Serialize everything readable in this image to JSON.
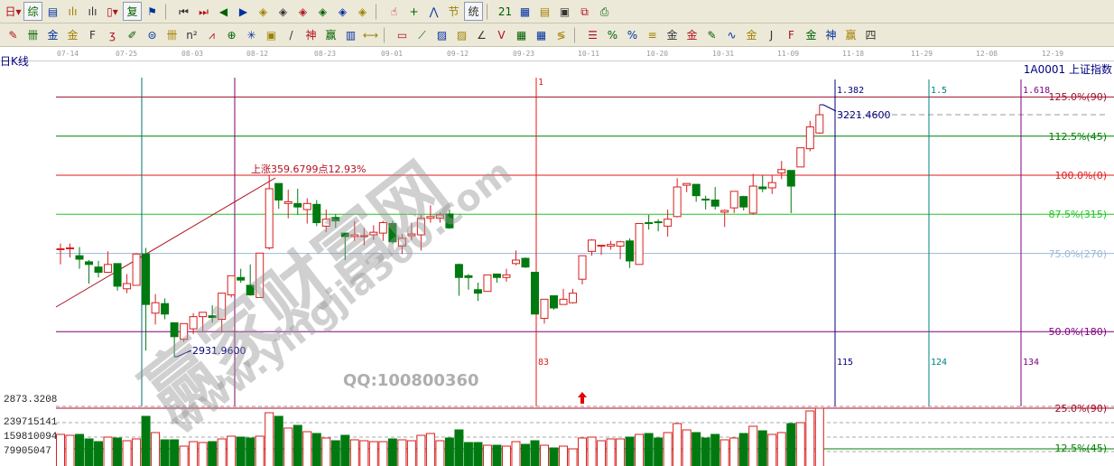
{
  "toolbar_row1": [
    {
      "icon": "period-day-dropdown-icon",
      "glyph": "日▾"
    },
    {
      "icon": "overview-icon",
      "glyph": "综"
    },
    {
      "icon": "notes-icon",
      "glyph": "▤"
    },
    {
      "icon": "volume-3-icon",
      "glyph": "ılı"
    },
    {
      "icon": "volume-9-icon",
      "glyph": "ılı"
    },
    {
      "icon": "candle-style-dropdown-icon",
      "glyph": "▯▾"
    },
    {
      "icon": "restore-rights-icon",
      "glyph": "复"
    },
    {
      "icon": "flag-icon",
      "glyph": "⚑"
    },
    {
      "icon": "sep",
      "glyph": ""
    },
    {
      "icon": "first-page-icon",
      "glyph": "⏮"
    },
    {
      "icon": "last-page-icon",
      "glyph": "⏭"
    },
    {
      "icon": "prev-icon",
      "glyph": "◀"
    },
    {
      "icon": "next-icon",
      "glyph": "▶"
    },
    {
      "icon": "move-left-icon",
      "glyph": "◈"
    },
    {
      "icon": "move-right-icon",
      "glyph": "◈"
    },
    {
      "icon": "zoom-out-icon",
      "glyph": "◈"
    },
    {
      "icon": "zoom-in-icon",
      "glyph": "◈"
    },
    {
      "icon": "expand-icon",
      "glyph": "◈"
    },
    {
      "icon": "expand-vertical-icon",
      "glyph": "◈"
    },
    {
      "icon": "sep",
      "glyph": ""
    },
    {
      "icon": "hand-icon",
      "glyph": "☝"
    },
    {
      "icon": "crosshair-icon",
      "glyph": "+"
    },
    {
      "icon": "trade-icon",
      "glyph": "⋀"
    },
    {
      "icon": "section-icon",
      "glyph": "节"
    },
    {
      "icon": "statistics-icon",
      "glyph": "统"
    },
    {
      "icon": "sep",
      "glyph": ""
    },
    {
      "icon": "calendar-icon",
      "glyph": "21"
    },
    {
      "icon": "calculator-icon",
      "glyph": "▦"
    },
    {
      "icon": "report-icon",
      "glyph": "▤"
    },
    {
      "icon": "save-icon",
      "glyph": "▣"
    },
    {
      "icon": "network-icon",
      "glyph": "⧉"
    },
    {
      "icon": "print-icon",
      "glyph": "⎙"
    }
  ],
  "toolbar_row2": [
    {
      "icon": "pen-icon",
      "glyph": "✎"
    },
    {
      "icon": "grid-lines-icon",
      "glyph": "卌"
    },
    {
      "icon": "gold-split-icon",
      "glyph": "金"
    },
    {
      "icon": "gold-split2-icon",
      "glyph": "金"
    },
    {
      "icon": "fib-icon",
      "glyph": "F"
    },
    {
      "icon": "cycle-icon",
      "glyph": "ʒ"
    },
    {
      "icon": "pen-ruler-icon",
      "glyph": "✐"
    },
    {
      "icon": "circle-icon",
      "glyph": "⊜"
    },
    {
      "icon": "parallel-icon",
      "glyph": "卌"
    },
    {
      "icon": "n-squared-icon",
      "glyph": "n²"
    },
    {
      "icon": "arrow-lines-icon",
      "glyph": "⩘"
    },
    {
      "icon": "target-icon",
      "glyph": "⊕"
    },
    {
      "icon": "web-icon",
      "glyph": "✳"
    },
    {
      "icon": "box-icon",
      "glyph": "▣"
    },
    {
      "icon": "slash-icon",
      "glyph": "/"
    },
    {
      "icon": "shen-icon",
      "glyph": "神"
    },
    {
      "icon": "ying-icon",
      "glyph": "赢"
    },
    {
      "icon": "ruler-icon",
      "glyph": "▥"
    },
    {
      "icon": "width-icon",
      "glyph": "⟷"
    },
    {
      "icon": "sep",
      "glyph": ""
    },
    {
      "icon": "rect-icon",
      "glyph": "▭"
    },
    {
      "icon": "fan-icon",
      "glyph": "⟋"
    },
    {
      "icon": "fan-box-icon",
      "glyph": "▨"
    },
    {
      "icon": "fan-box2-icon",
      "glyph": "▨"
    },
    {
      "icon": "angle-icon",
      "glyph": "∠"
    },
    {
      "icon": "v-icon",
      "glyph": "V"
    },
    {
      "icon": "grid-icon",
      "glyph": "▦"
    },
    {
      "icon": "grid2-icon",
      "glyph": "▦"
    },
    {
      "icon": "multi-line-icon",
      "glyph": "≶"
    },
    {
      "icon": "sep",
      "glyph": ""
    },
    {
      "icon": "list-icon",
      "glyph": "☰"
    },
    {
      "icon": "percent-line-icon",
      "glyph": "%"
    },
    {
      "icon": "percent-icon",
      "glyph": "%"
    },
    {
      "icon": "percent-levels-icon",
      "glyph": "≡"
    },
    {
      "icon": "gold-circle-icon",
      "glyph": "金"
    },
    {
      "icon": "gold-levels-icon",
      "glyph": "金"
    },
    {
      "icon": "pen-levels-icon",
      "glyph": "✎"
    },
    {
      "icon": "wave-icon",
      "glyph": "∿"
    },
    {
      "icon": "gold-line-icon",
      "glyph": "金"
    },
    {
      "icon": "j-fan-icon",
      "glyph": "J"
    },
    {
      "icon": "f-fan-icon",
      "glyph": "F"
    },
    {
      "icon": "gold-fan-icon",
      "glyph": "金"
    },
    {
      "icon": "shen-fan-icon",
      "glyph": "神"
    },
    {
      "icon": "ying-fan-icon",
      "glyph": "赢"
    },
    {
      "icon": "four-fan-icon",
      "glyph": "四"
    }
  ],
  "date_axis": [
    "07-14",
    "07-25",
    "08-03",
    "08-12",
    "08-23",
    "09-01",
    "09-12",
    "09-23",
    "10-11",
    "10-20",
    "10-31",
    "11-09",
    "11-18",
    "11-29",
    "12-08",
    "12-19"
  ],
  "chart": {
    "period_label": "日K线",
    "symbol_label": "1A0001  上证指数",
    "bottom_price_label": "2873.3208",
    "rise_annotation": "上涨359.6799点12.93%",
    "low_annotation": "2931.9600",
    "high_annotation": "3221.4600",
    "colors": {
      "up": "#d81e1e",
      "down": "#007a10",
      "axis_text": "#00007f"
    },
    "fib_levels": [
      {
        "pct": 125.0,
        "label": "125.0%(90)",
        "color": "#a0102a"
      },
      {
        "pct": 112.5,
        "label": "112.5%(45)",
        "color": "#008000"
      },
      {
        "pct": 100.0,
        "label": "100.0%(0)",
        "color": "#e01818"
      },
      {
        "pct": 87.5,
        "label": "87.5%(315)",
        "color": "#22c522"
      },
      {
        "pct": 75.0,
        "label": "75.0%(270)",
        "color": "#9ab8d8"
      },
      {
        "pct": 50.0,
        "label": "50.0%(180)",
        "color": "#800080"
      }
    ],
    "time_lines": [
      {
        "top": "",
        "bottom": "",
        "color": "#007070"
      },
      {
        "top": "",
        "bottom": "",
        "color": "#800060"
      },
      {
        "top": "1",
        "bottom": "83",
        "color": "#e01818"
      },
      {
        "top": "1.382",
        "bottom": "115",
        "color": "#00007f"
      },
      {
        "top": "1.5",
        "bottom": "124",
        "color": "#008080"
      },
      {
        "top": "1.618",
        "bottom": "134",
        "color": "#800080"
      }
    ],
    "candles_ohlc": [
      [
        3055,
        3062,
        3038,
        3056
      ],
      [
        3056,
        3062,
        3046,
        3057
      ],
      [
        3048,
        3058,
        3033,
        3044
      ],
      [
        3041,
        3043,
        3016,
        3038
      ],
      [
        3035,
        3042,
        3023,
        3029
      ],
      [
        3029,
        3053,
        3029,
        3038
      ],
      [
        3039,
        3039,
        3008,
        3013
      ],
      [
        3010,
        3027,
        3005,
        3016
      ],
      [
        3014,
        3051,
        3014,
        3050
      ],
      [
        3050,
        3057,
        2939,
        2992
      ],
      [
        2982,
        3004,
        2969,
        2994
      ],
      [
        2993,
        2999,
        2975,
        2981
      ],
      [
        2971,
        2971,
        2932,
        2955
      ],
      [
        2952,
        2970,
        2949,
        2970
      ],
      [
        2964,
        2982,
        2958,
        2978
      ],
      [
        2978,
        2983,
        2961,
        2983
      ],
      [
        2979,
        2991,
        2971,
        2977
      ],
      [
        2975,
        3005,
        2960,
        3005
      ],
      [
        3003,
        3025,
        3000,
        3025
      ],
      [
        3023,
        3033,
        3017,
        3020
      ],
      [
        3014,
        3038,
        3002,
        3003
      ],
      [
        3000,
        3051,
        3000,
        3051
      ],
      [
        3057,
        3140,
        3055,
        3125
      ],
      [
        3131,
        3131,
        3102,
        3112
      ],
      [
        3108,
        3124,
        3091,
        3110
      ],
      [
        3108,
        3125,
        3095,
        3104
      ],
      [
        3101,
        3114,
        3085,
        3108
      ],
      [
        3107,
        3112,
        3082,
        3086
      ],
      [
        3082,
        3101,
        3075,
        3090
      ],
      [
        3092,
        3096,
        3080,
        3088
      ],
      [
        3074,
        3074,
        3043,
        3070
      ],
      [
        3070,
        3088,
        3065,
        3072
      ],
      [
        3070,
        3080,
        3060,
        3071
      ],
      [
        3072,
        3083,
        3066,
        3075
      ],
      [
        3074,
        3088,
        3065,
        3086
      ],
      [
        3085,
        3088,
        3062,
        3064
      ],
      [
        3059,
        3073,
        3050,
        3068
      ],
      [
        3071,
        3086,
        3066,
        3073
      ],
      [
        3072,
        3095,
        3054,
        3091
      ],
      [
        3091,
        3106,
        3086,
        3093
      ],
      [
        3091,
        3098,
        3086,
        3095
      ],
      [
        3096,
        3101,
        3079,
        3080
      ],
      [
        3038,
        3039,
        3002,
        3023
      ],
      [
        3025,
        3027,
        3009,
        3023
      ],
      [
        3009,
        3017,
        2996,
        3005
      ],
      [
        3007,
        3026,
        3007,
        3026
      ],
      [
        3027,
        3027,
        3017,
        3023
      ],
      [
        3023,
        3033,
        3018,
        3026
      ],
      [
        3039,
        3054,
        3037,
        3043
      ],
      [
        3045,
        3046,
        3034,
        3035
      ],
      [
        3029,
        3029,
        2981,
        2981
      ],
      [
        2976,
        2998,
        2970,
        2998
      ],
      [
        3002,
        3002,
        2986,
        2988
      ],
      [
        2992,
        3010,
        2992,
        2998
      ],
      [
        2994,
        3010,
        2993,
        3005
      ],
      [
        3021,
        3048,
        3015,
        3048
      ],
      [
        3053,
        3067,
        3048,
        3066
      ],
      [
        3059,
        3060,
        3049,
        3060
      ],
      [
        3059,
        3065,
        3055,
        3061
      ],
      [
        3059,
        3065,
        3044,
        3064
      ],
      [
        3065,
        3068,
        3034,
        3042
      ],
      [
        3038,
        3085,
        3038,
        3085
      ],
      [
        3086,
        3095,
        3078,
        3085
      ],
      [
        3087,
        3090,
        3076,
        3086
      ],
      [
        3082,
        3101,
        3070,
        3090
      ],
      [
        3093,
        3137,
        3092,
        3127
      ],
      [
        3129,
        3131,
        3121,
        3131
      ],
      [
        3130,
        3130,
        3110,
        3117
      ],
      [
        3113,
        3117,
        3101,
        3112
      ],
      [
        3112,
        3127,
        3101,
        3105
      ],
      [
        3098,
        3101,
        3081,
        3100
      ],
      [
        3103,
        3122,
        3097,
        3122
      ],
      [
        3116,
        3117,
        3100,
        3104
      ],
      [
        3097,
        3142,
        3095,
        3128
      ],
      [
        3127,
        3140,
        3121,
        3125
      ],
      [
        3126,
        3140,
        3119,
        3132
      ],
      [
        3143,
        3157,
        3136,
        3147
      ],
      [
        3146,
        3146,
        3097,
        3128
      ],
      [
        3150,
        3172,
        3150,
        3172
      ],
      [
        3171,
        3203,
        3168,
        3196
      ],
      [
        3189,
        3221.46,
        3188,
        3210
      ]
    ],
    "volume_axis_labels": [
      "239715141",
      "159810094",
      "79905047"
    ],
    "volume_levels": [
      {
        "label": "25.0%(90)",
        "color": "#a0102a"
      },
      {
        "label": "12.5%(45)",
        "color": "#008000"
      }
    ],
    "volumes": [
      175000000,
      170000000,
      175000000,
      150000000,
      135000000,
      160000000,
      155000000,
      140000000,
      150000000,
      275000000,
      185000000,
      145000000,
      145000000,
      110000000,
      135000000,
      130000000,
      135000000,
      150000000,
      165000000,
      160000000,
      155000000,
      165000000,
      295000000,
      275000000,
      210000000,
      225000000,
      190000000,
      180000000,
      155000000,
      140000000,
      170000000,
      145000000,
      140000000,
      135000000,
      135000000,
      150000000,
      145000000,
      140000000,
      170000000,
      180000000,
      140000000,
      155000000,
      200000000,
      130000000,
      130000000,
      115000000,
      115000000,
      110000000,
      135000000,
      120000000,
      140000000,
      115000000,
      100000000,
      110000000,
      95000000,
      155000000,
      160000000,
      140000000,
      150000000,
      150000000,
      160000000,
      175000000,
      180000000,
      155000000,
      185000000,
      235000000,
      200000000,
      185000000,
      155000000,
      175000000,
      145000000,
      155000000,
      180000000,
      220000000,
      195000000,
      175000000,
      185000000,
      235000000,
      240000000,
      305000000,
      320000000
    ]
  },
  "watermark": {
    "brand": "赢家财富网",
    "url": "www.yingjia360.com",
    "qq": "QQ:100800360"
  }
}
